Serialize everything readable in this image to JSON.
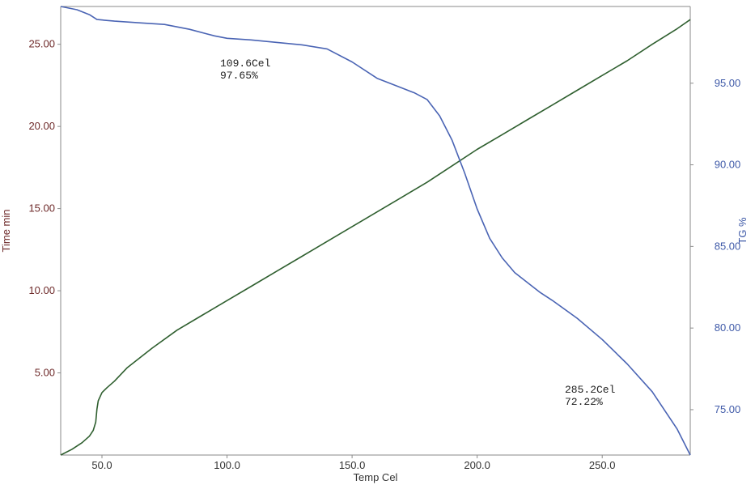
{
  "chart_data": {
    "type": "line",
    "title": "",
    "xlabel": "Temp Cel",
    "ylabel_left": "Time min",
    "ylabel_right": "TG %",
    "xlim": [
      33.5,
      285.2
    ],
    "ylim_left": [
      0,
      27.3
    ],
    "ylim_right": [
      72.22,
      99.7
    ],
    "grid": false,
    "x_ticks": [
      "50.0",
      "100.0",
      "150.0",
      "200.0",
      "250.0"
    ],
    "y_left_ticks": [
      "5.00",
      "10.00",
      "15.00",
      "20.00",
      "25.00"
    ],
    "y_right_ticks": [
      "75.00",
      "80.00",
      "85.00",
      "90.00",
      "95.00"
    ],
    "colors": {
      "time": "#2f5f2f",
      "tg": "#4a64b4",
      "axis": "#8a8a8a",
      "left_text": "#6e2a2a",
      "right_text": "#3f5aa8",
      "x_text": "#333333"
    },
    "series": [
      {
        "name": "Time",
        "axis": "left",
        "x": [
          33.5,
          38.0,
          42.0,
          45.0,
          46.5,
          47.5,
          48.0,
          48.5,
          50.0,
          52.0,
          55.0,
          60.0,
          70.0,
          80.0,
          90.0,
          100.0,
          110.0,
          120.0,
          130.0,
          140.0,
          150.0,
          160.0,
          170.0,
          180.0,
          190.0,
          200.0,
          210.0,
          220.0,
          230.0,
          240.0,
          250.0,
          260.0,
          270.0,
          280.0,
          285.2
        ],
        "y": [
          0.0,
          0.35,
          0.75,
          1.15,
          1.5,
          2.0,
          2.8,
          3.3,
          3.8,
          4.1,
          4.5,
          5.3,
          6.5,
          7.6,
          8.5,
          9.4,
          10.3,
          11.2,
          12.1,
          13.0,
          13.9,
          14.8,
          15.7,
          16.6,
          17.6,
          18.6,
          19.5,
          20.4,
          21.3,
          22.2,
          23.1,
          24.0,
          25.0,
          25.95,
          26.5
        ]
      },
      {
        "name": "TG",
        "axis": "right",
        "x": [
          33.5,
          40.0,
          45.0,
          48.0,
          55.0,
          65.0,
          75.0,
          85.0,
          95.0,
          100.0,
          109.6,
          120.0,
          130.0,
          140.0,
          150.0,
          160.0,
          165.0,
          170.0,
          175.0,
          180.0,
          185.0,
          190.0,
          195.0,
          200.0,
          205.0,
          210.0,
          215.0,
          220.0,
          225.0,
          230.0,
          240.0,
          250.0,
          260.0,
          270.0,
          280.0,
          285.2
        ],
        "y": [
          99.7,
          99.5,
          99.2,
          98.9,
          98.8,
          98.7,
          98.6,
          98.3,
          97.9,
          97.75,
          97.65,
          97.5,
          97.35,
          97.1,
          96.3,
          95.3,
          95.0,
          94.7,
          94.4,
          94.0,
          93.0,
          91.5,
          89.5,
          87.3,
          85.5,
          84.3,
          83.4,
          82.8,
          82.2,
          81.7,
          80.6,
          79.3,
          77.8,
          76.1,
          73.8,
          72.22
        ]
      }
    ],
    "annotations": [
      {
        "x": 109.6,
        "y": 97.65,
        "axis": "right",
        "line1": "109.6Cel",
        "line2": "97.65%"
      },
      {
        "x": 285.2,
        "y": 72.22,
        "axis": "right",
        "line1": "285.2Cel",
        "line2": "72.22%"
      }
    ]
  }
}
